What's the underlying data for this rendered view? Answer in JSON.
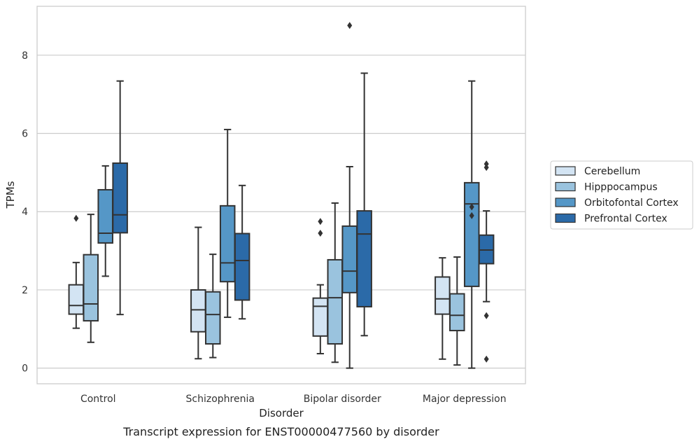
{
  "chart_data": {
    "type": "box",
    "title": "",
    "caption": "Transcript expression for ENST00000477560 by disorder",
    "xlabel": "Disorder",
    "ylabel": "TPMs",
    "ylim": [
      -0.4,
      9.25
    ],
    "yticks": [
      0,
      2,
      4,
      6,
      8
    ],
    "grid": "y",
    "legend_position": "right",
    "categories": [
      "Control",
      "Schizophrenia",
      "Bipolar disorder",
      "Major depression"
    ],
    "series": [
      {
        "name": "Cerebellum",
        "color": "#d3e4f3",
        "boxes": [
          {
            "whislo": 1.02,
            "q1": 1.38,
            "med": 1.6,
            "q3": 2.13,
            "whishi": 2.7,
            "fliers": [
              3.83
            ]
          },
          {
            "whislo": 0.24,
            "q1": 0.93,
            "med": 1.49,
            "q3": 2.0,
            "whishi": 3.6,
            "fliers": []
          },
          {
            "whislo": 0.37,
            "q1": 0.82,
            "med": 1.58,
            "q3": 1.79,
            "whishi": 2.13,
            "fliers": [
              3.45,
              3.75
            ]
          },
          {
            "whislo": 0.23,
            "q1": 1.38,
            "med": 1.77,
            "q3": 2.33,
            "whishi": 2.82,
            "fliers": []
          }
        ]
      },
      {
        "name": "Hipppocampus",
        "color": "#9ac3de",
        "boxes": [
          {
            "whislo": 0.66,
            "q1": 1.21,
            "med": 1.64,
            "q3": 2.9,
            "whishi": 3.93,
            "fliers": []
          },
          {
            "whislo": 0.27,
            "q1": 0.62,
            "med": 1.37,
            "q3": 1.95,
            "whishi": 2.91,
            "fliers": []
          },
          {
            "whislo": 0.15,
            "q1": 0.62,
            "med": 1.8,
            "q3": 2.77,
            "whishi": 4.22,
            "fliers": []
          },
          {
            "whislo": 0.08,
            "q1": 0.96,
            "med": 1.35,
            "q3": 1.9,
            "whishi": 2.84,
            "fliers": []
          }
        ]
      },
      {
        "name": "Orbitofontal Cortex",
        "color": "#5597c7",
        "boxes": [
          {
            "whislo": 2.35,
            "q1": 3.2,
            "med": 3.45,
            "q3": 4.56,
            "whishi": 5.17,
            "fliers": []
          },
          {
            "whislo": 1.3,
            "q1": 2.21,
            "med": 2.69,
            "q3": 4.15,
            "whishi": 6.1,
            "fliers": []
          },
          {
            "whislo": 0.0,
            "q1": 1.93,
            "med": 2.48,
            "q3": 3.63,
            "whishi": 5.15,
            "fliers": [
              8.76
            ]
          },
          {
            "whislo": 0.0,
            "q1": 2.09,
            "med": 4.2,
            "q3": 4.74,
            "whishi": 7.34,
            "fliers": [
              3.9,
              4.12
            ]
          }
        ]
      },
      {
        "name": "Prefrontal Cortex",
        "color": "#2b6aa8",
        "boxes": [
          {
            "whislo": 1.37,
            "q1": 3.46,
            "med": 3.92,
            "q3": 5.24,
            "whishi": 7.34,
            "fliers": []
          },
          {
            "whislo": 1.26,
            "q1": 1.74,
            "med": 2.75,
            "q3": 3.44,
            "whishi": 4.67,
            "fliers": []
          },
          {
            "whislo": 0.83,
            "q1": 1.57,
            "med": 3.43,
            "q3": 4.02,
            "whishi": 7.54,
            "fliers": []
          },
          {
            "whislo": 1.7,
            "q1": 2.67,
            "med": 3.02,
            "q3": 3.4,
            "whishi": 4.02,
            "fliers": [
              1.34,
              0.23,
              5.13,
              5.22
            ]
          }
        ]
      }
    ]
  }
}
